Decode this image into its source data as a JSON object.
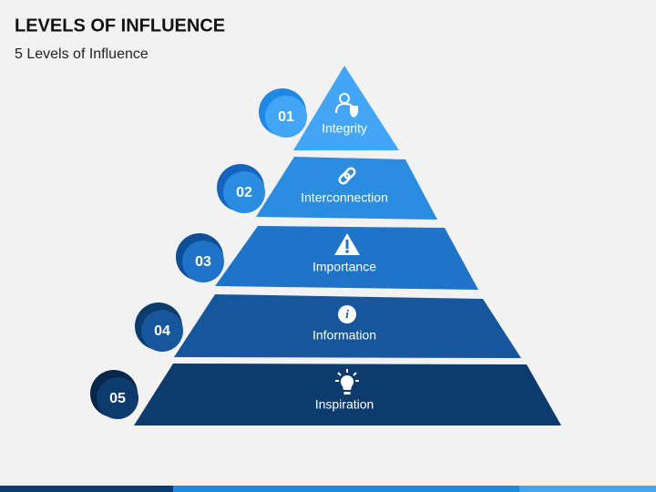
{
  "header": {
    "title": "LEVELS OF INFLUENCE",
    "subtitle": "5 Levels of Influence"
  },
  "levels": [
    {
      "number": "01",
      "label": "Integrity"
    },
    {
      "number": "02",
      "label": "Interconnection"
    },
    {
      "number": "03",
      "label": "Importance"
    },
    {
      "number": "04",
      "label": "Information"
    },
    {
      "number": "05",
      "label": "Inspiration"
    }
  ]
}
